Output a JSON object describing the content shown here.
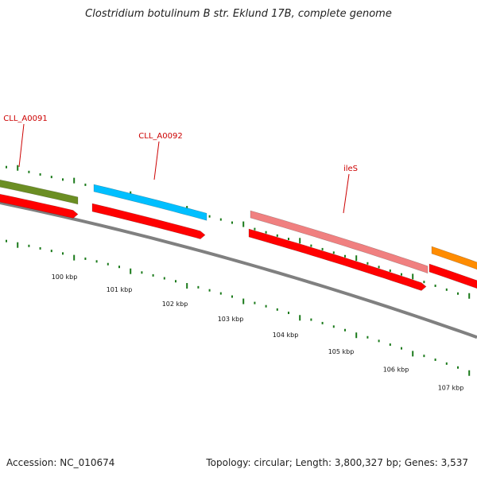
{
  "title": "Clostridium botulinum B str. Eklund 17B, complete genome",
  "footer": {
    "accession": "Accession: NC_010674",
    "summary": "Topology: circular; Length: 3,800,327 bp; Genes: 3,537"
  },
  "ticks": [
    "100 kbp",
    "101 kbp",
    "102 kbp",
    "103 kbp",
    "104 kbp",
    "105 kbp",
    "106 kbp",
    "107 kbp"
  ],
  "genes": [
    {
      "label": "CLL_A0091",
      "color": "#6b8e23"
    },
    {
      "label": "CLL_A0092",
      "color": "#00bfff"
    },
    {
      "label": "ileS",
      "color": "#f08080"
    },
    {
      "label": "",
      "color": "#ff8c00"
    }
  ],
  "colors": {
    "cds": "#ff0000",
    "tick": "#1a7a1a",
    "label": "#cc0000",
    "backbone": "#808080"
  }
}
